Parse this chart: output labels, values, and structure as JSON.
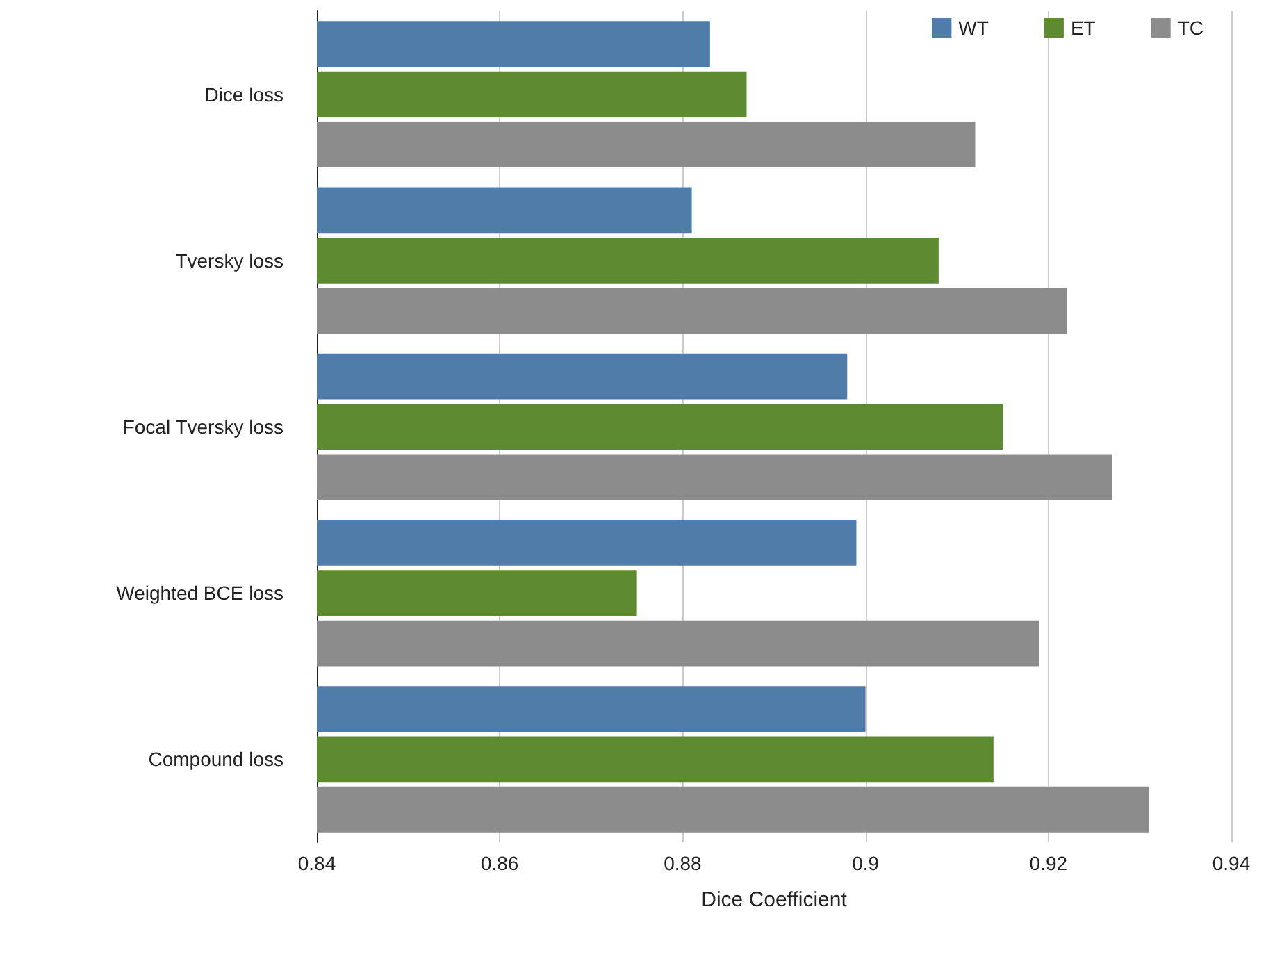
{
  "chart_data": {
    "type": "bar",
    "orientation": "horizontal",
    "xlabel": "Dice Coefficient",
    "categories": [
      "Dice loss",
      "Tversky loss",
      "Focal Tversky loss",
      "Weighted BCE loss",
      "Compound loss"
    ],
    "series": [
      {
        "name": "WT",
        "color": "#4f7ca8",
        "values": [
          0.883,
          0.881,
          0.898,
          0.899,
          0.9
        ]
      },
      {
        "name": "ET",
        "color": "#5e8a2f",
        "values": [
          0.887,
          0.908,
          0.915,
          0.875,
          0.914
        ]
      },
      {
        "name": "TC",
        "color": "#8c8c8c",
        "values": [
          0.912,
          0.922,
          0.927,
          0.919,
          0.931
        ]
      }
    ],
    "xlim": [
      0.84,
      0.94
    ],
    "xticks": [
      0.84,
      0.86,
      0.88,
      0.9,
      0.92,
      0.94
    ],
    "grid": "x",
    "legend": "top right"
  }
}
